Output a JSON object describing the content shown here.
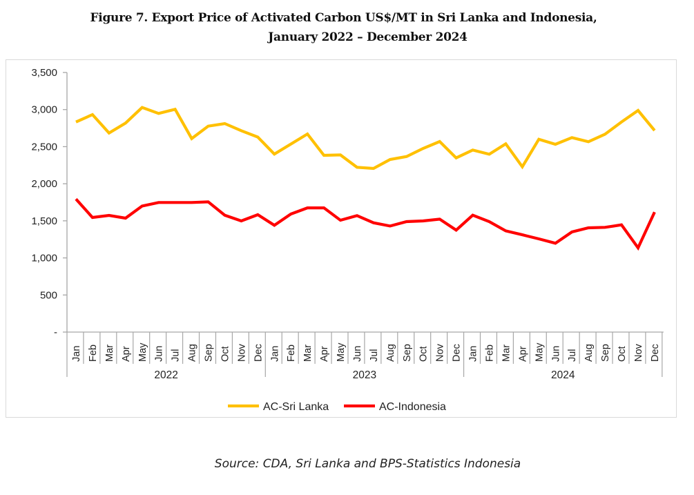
{
  "title": {
    "line1": "Figure 7. Export Price of Activated Carbon US$/MT in Sri Lanka and Indonesia,",
    "line2": "January 2022 – December 2024"
  },
  "source": "Source: CDA, Sri Lanka and BPS-Statistics Indonesia",
  "chart_data": {
    "type": "line",
    "title": "Figure 7. Export Price of Activated Carbon US$/MT in Sri Lanka and Indonesia, January 2022 – December 2024",
    "xlabel": "",
    "ylabel": "",
    "ylim": [
      0,
      3500
    ],
    "yticks": [
      0,
      500,
      1000,
      1500,
      2000,
      2500,
      3000,
      3500
    ],
    "ytick_labels": [
      "-",
      "500",
      "1,000",
      "1,500",
      "2,000",
      "2,500",
      "3,000",
      "3,500"
    ],
    "grid": false,
    "legend_position": "bottom",
    "years": [
      "2022",
      "2023",
      "2024"
    ],
    "months": [
      "Jan",
      "Feb",
      "Mar",
      "Apr",
      "May",
      "Jun",
      "Jul",
      "Aug",
      "Sep",
      "Oct",
      "Nov",
      "Dec"
    ],
    "categories": [
      "Jan 2022",
      "Feb 2022",
      "Mar 2022",
      "Apr 2022",
      "May 2022",
      "Jun 2022",
      "Jul 2022",
      "Aug 2022",
      "Sep 2022",
      "Oct 2022",
      "Nov 2022",
      "Dec 2022",
      "Jan 2023",
      "Feb 2023",
      "Mar 2023",
      "Apr 2023",
      "May 2023",
      "Jun 2023",
      "Jul 2023",
      "Aug 2023",
      "Sep 2023",
      "Oct 2023",
      "Nov 2023",
      "Dec 2023",
      "Jan 2024",
      "Feb 2024",
      "Mar 2024",
      "Apr 2024",
      "May 2024",
      "Jun 2024",
      "Jul 2024",
      "Aug 2024",
      "Sep 2024",
      "Oct 2024",
      "Nov 2024",
      "Dec 2024"
    ],
    "series": [
      {
        "name": "AC-Sri Lanka",
        "color": "#FFC000",
        "values": [
          2833,
          2932,
          2684,
          2818,
          3028,
          2948,
          3004,
          2609,
          2777,
          2811,
          2715,
          2630,
          2400,
          2535,
          2671,
          2383,
          2389,
          2222,
          2206,
          2327,
          2367,
          2476,
          2569,
          2349,
          2455,
          2398,
          2538,
          2228,
          2600,
          2532,
          2622,
          2566,
          2668,
          2833,
          2988,
          2718
        ]
      },
      {
        "name": "AC-Indonesia",
        "color": "#FF0000",
        "values": [
          1794,
          1545,
          1573,
          1536,
          1700,
          1747,
          1747,
          1747,
          1756,
          1576,
          1499,
          1582,
          1440,
          1592,
          1675,
          1675,
          1508,
          1570,
          1474,
          1430,
          1489,
          1499,
          1523,
          1375,
          1576,
          1489,
          1365,
          1312,
          1257,
          1198,
          1350,
          1406,
          1412,
          1446,
          1136,
          1617
        ]
      }
    ]
  }
}
